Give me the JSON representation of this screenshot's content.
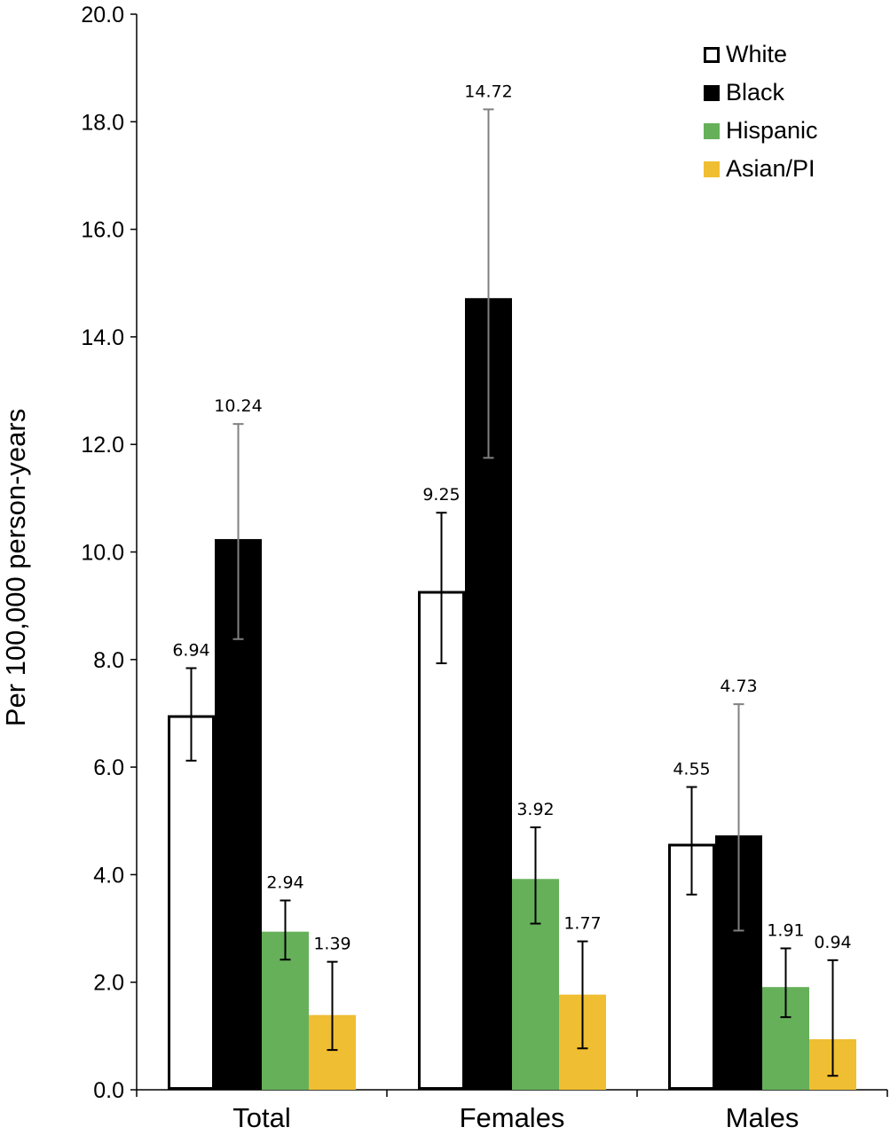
{
  "chart_data": {
    "type": "bar",
    "title": "",
    "xlabel": "",
    "ylabel": "Per 100,000 person-years",
    "ylim": [
      0,
      20
    ],
    "yticks": [
      "0.0",
      "2.0",
      "4.0",
      "6.0",
      "8.0",
      "10.0",
      "12.0",
      "14.0",
      "16.0",
      "18.0",
      "20.0"
    ],
    "categories": [
      "Total",
      "Females",
      "Males"
    ],
    "legend_position": "top-right",
    "grid": false,
    "series": [
      {
        "name": "White",
        "fill": "#ffffff",
        "stroke": "#000000",
        "values": [
          6.94,
          9.25,
          4.55
        ],
        "labels": [
          "6.94",
          "9.25",
          "4.55"
        ],
        "ci_low": [
          6.12,
          7.93,
          3.63
        ],
        "ci_high": [
          7.84,
          10.73,
          5.63
        ]
      },
      {
        "name": "Black",
        "fill": "#000000",
        "stroke": "#000000",
        "values": [
          10.24,
          14.72,
          4.73
        ],
        "labels": [
          "10.24",
          "14.72",
          "4.73"
        ],
        "ci_low": [
          8.38,
          11.75,
          2.96
        ],
        "ci_high": [
          12.38,
          18.23,
          7.17
        ]
      },
      {
        "name": "Hispanic",
        "fill": "#66b05a",
        "stroke": "#66b05a",
        "values": [
          2.94,
          3.92,
          1.91
        ],
        "labels": [
          "2.94",
          "3.92",
          "1.91"
        ],
        "ci_low": [
          2.42,
          3.09,
          1.35
        ],
        "ci_high": [
          3.52,
          4.88,
          2.63
        ]
      },
      {
        "name": "Asian/PI",
        "fill": "#f0be32",
        "stroke": "#f0be32",
        "values": [
          1.39,
          1.77,
          0.94
        ],
        "labels": [
          "1.39",
          "1.77",
          "0.94"
        ],
        "ci_low": [
          0.74,
          0.77,
          0.26
        ],
        "ci_high": [
          2.38,
          2.76,
          2.41
        ]
      }
    ]
  }
}
